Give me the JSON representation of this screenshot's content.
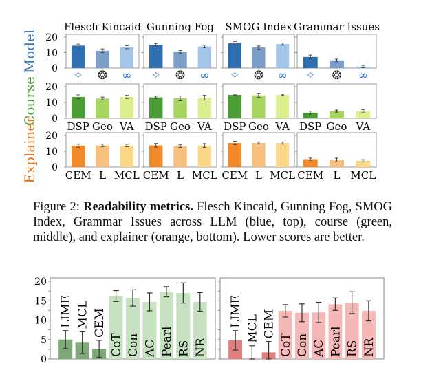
{
  "caption": {
    "label": "Figure 2:",
    "bold": "Readability metrics.",
    "text": "Flesch Kincaid, Gunning Fog, SMOG Index, Grammar Issues across LLM (blue, top), course (green, middle), and explainer (orange, bottom). Lower scores are better."
  },
  "chart_data": {
    "grid": {
      "type": "bar",
      "columns": [
        "Flesch Kincaid",
        "Gunning Fog",
        "SMOG Index",
        "Grammar Issues"
      ],
      "ylim": [
        0,
        20
      ],
      "yticks": [
        "0",
        "10",
        "20"
      ],
      "rows": [
        {
          "label": "Model",
          "label_color": "#3a78c0",
          "categories": [
            "gemini-icon",
            "openai-icon",
            "meta-icon"
          ],
          "category_type": "icons",
          "colors": [
            "#2f6fb0",
            "#7b9fc8",
            "#a4c5ea"
          ],
          "values": [
            [
              14.5,
              11.2,
              13.5
            ],
            [
              15.0,
              10.5,
              14.0
            ],
            [
              16.0,
              13.3,
              15.5
            ],
            [
              7.2,
              5.0,
              1.0
            ]
          ],
          "errors": [
            [
              1.0,
              1.2,
              1.0
            ],
            [
              0.9,
              0.8,
              0.8
            ],
            [
              1.2,
              1.0,
              0.7
            ],
            [
              1.2,
              0.8,
              0.8
            ]
          ]
        },
        {
          "label": "Course",
          "label_color": "#4e9a3a",
          "categories": [
            "DSP",
            "Geo",
            "VA"
          ],
          "category_type": "text",
          "colors": [
            "#4a9e35",
            "#a8d560",
            "#dcef8e"
          ],
          "values": [
            [
              13.5,
              12.5,
              13.5
            ],
            [
              13.2,
              12.6,
              13.0
            ],
            [
              14.8,
              14.5,
              14.8
            ],
            [
              3.5,
              4.5,
              4.5
            ]
          ],
          "errors": [
            [
              1.3,
              0.9,
              1.0
            ],
            [
              0.8,
              1.5,
              1.5
            ],
            [
              0.4,
              1.3,
              0.4
            ],
            [
              1.0,
              0.7,
              1.0
            ]
          ]
        },
        {
          "label": "Explainer",
          "label_color": "#e07a2c",
          "categories": [
            "CEM",
            "L",
            "MCL"
          ],
          "category_type": "text",
          "colors": [
            "#f28a2a",
            "#f8c07e",
            "#fbd78a"
          ],
          "values": [
            [
              13.5,
              13.7,
              13.6
            ],
            [
              13.7,
              13.2,
              13.6
            ],
            [
              15.2,
              15.2,
              15.2
            ],
            [
              5.0,
              4.5,
              4.0
            ]
          ],
          "errors": [
            [
              1.0,
              0.8,
              0.8
            ],
            [
              1.2,
              0.8,
              1.2
            ],
            [
              1.1,
              0.6,
              0.7
            ],
            [
              0.7,
              1.2,
              0.7
            ]
          ]
        }
      ]
    },
    "bottom": [
      {
        "type": "bar",
        "ylim": [
          0,
          20
        ],
        "yticks": [
          "0",
          "5",
          "10",
          "15",
          "20"
        ],
        "categories": [
          "LIME",
          "MCL",
          "CEM",
          "CoT",
          "Con",
          "AC",
          "Pearl",
          "RS",
          "NR"
        ],
        "values": [
          5.0,
          4.2,
          2.6,
          16.2,
          15.7,
          14.7,
          17.3,
          17.0,
          14.7
        ],
        "errors": [
          2.3,
          2.8,
          2.2,
          1.4,
          2.1,
          2.3,
          1.3,
          2.6,
          2.4
        ],
        "colors": [
          "#7fa878",
          "#7fa878",
          "#7fa878",
          "#c6e2c0",
          "#c6e2c0",
          "#c6e2c0",
          "#c6e2c0",
          "#c6e2c0",
          "#c6e2c0"
        ]
      },
      {
        "type": "bar",
        "ylim": [
          0,
          20
        ],
        "yticks": [],
        "categories": [
          "LIME",
          "MCL",
          "CEM",
          "CoT",
          "Con",
          "AC",
          "Pearl",
          "RS",
          "NR"
        ],
        "values": [
          4.8,
          0.3,
          1.7,
          12.4,
          11.9,
          12.0,
          14.1,
          14.5,
          12.4
        ],
        "errors": [
          2.5,
          3.1,
          2.8,
          1.6,
          2.3,
          2.6,
          1.6,
          2.8,
          2.6
        ],
        "colors": [
          "#de8080",
          "#f5b8b6",
          "#de8080",
          "#f5b8b6",
          "#f5b8b6",
          "#f5b8b6",
          "#f5b8b6",
          "#f5b8b6",
          "#f5b8b6"
        ]
      }
    ]
  }
}
